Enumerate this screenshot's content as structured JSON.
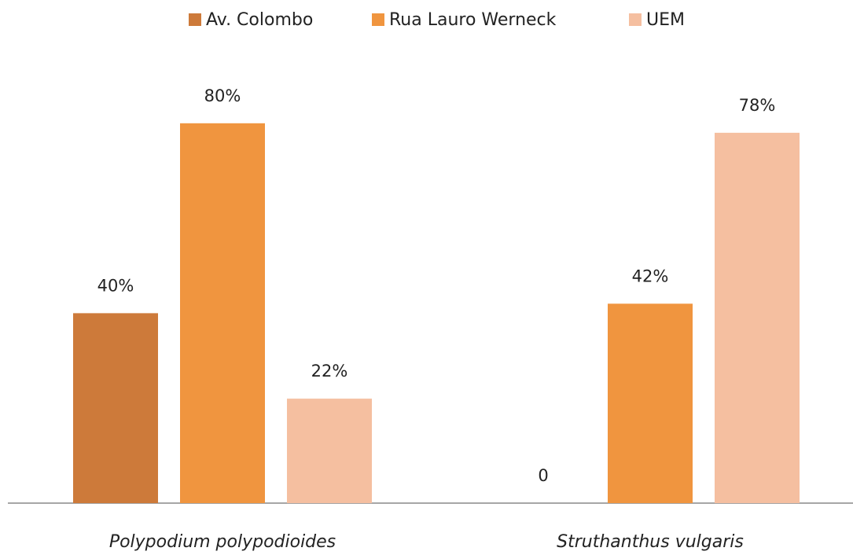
{
  "chart_data": {
    "type": "bar",
    "categories": [
      "Polypodium polypodioides",
      "Struthanthus vulgaris"
    ],
    "series": [
      {
        "name": "Av. Colombo",
        "color": "#cd7a3a",
        "values": [
          40,
          0
        ],
        "value_labels": [
          "40%",
          "0"
        ]
      },
      {
        "name": "Rua Lauro Werneck",
        "color": "#f0953f",
        "values": [
          80,
          42
        ],
        "value_labels": [
          "80%",
          "42%"
        ]
      },
      {
        "name": "UEM",
        "color": "#f5bfa0",
        "values": [
          22,
          78
        ],
        "value_labels": [
          "22%",
          "78%"
        ]
      }
    ],
    "legend": "top"
  }
}
